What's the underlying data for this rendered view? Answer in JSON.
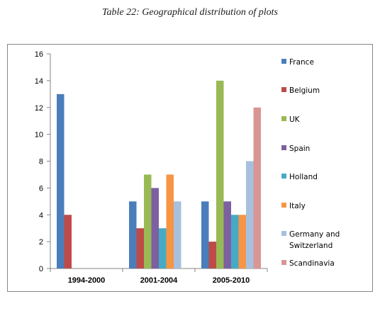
{
  "caption": "Table 22: Geographical distribution of plots",
  "chart_data": {
    "type": "bar",
    "categories": [
      "1994-2000",
      "2001-2004",
      "2005-2010"
    ],
    "ylim": [
      0,
      16
    ],
    "yticks": [
      0,
      2,
      4,
      6,
      8,
      10,
      12,
      14,
      16
    ],
    "grid": false,
    "legend_position": "right",
    "series": [
      {
        "name": "France",
        "color": "#4a7ebb",
        "values": [
          13,
          5,
          5
        ]
      },
      {
        "name": "Belgium",
        "color": "#be4b48",
        "values": [
          4,
          3,
          2
        ]
      },
      {
        "name": "UK",
        "color": "#98b954",
        "values": [
          0,
          7,
          14
        ]
      },
      {
        "name": "Spain",
        "color": "#7d60a0",
        "values": [
          0,
          6,
          5
        ]
      },
      {
        "name": "Holland",
        "color": "#46aac5",
        "values": [
          0,
          3,
          4
        ]
      },
      {
        "name": "Italy",
        "color": "#f69544",
        "values": [
          0,
          7,
          4
        ]
      },
      {
        "name": "Germany and Switzerland",
        "color": "#a7c0de",
        "values": [
          0,
          5,
          8
        ]
      },
      {
        "name": "Scandinavia",
        "color": "#d99694",
        "values": [
          0,
          0,
          12
        ]
      }
    ],
    "legend_lines": [
      [
        "France"
      ],
      [
        "Belgium"
      ],
      [
        "UK"
      ],
      [
        "Spain"
      ],
      [
        "Holland"
      ],
      [
        "Italy"
      ],
      [
        "Germany and",
        "Switzerland"
      ],
      [
        "Scandinavia"
      ]
    ]
  }
}
